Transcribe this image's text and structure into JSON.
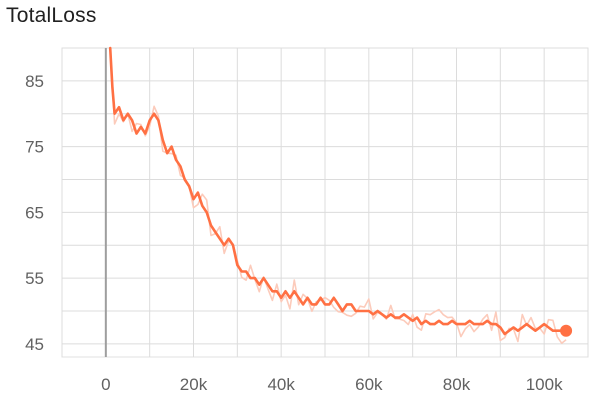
{
  "chart_data": {
    "type": "line",
    "title": "TotalLoss",
    "xlabel": "",
    "ylabel": "",
    "xlim": [
      -10000,
      110000
    ],
    "ylim": [
      43,
      90
    ],
    "x_ticks": [
      0,
      20000,
      40000,
      60000,
      80000,
      100000
    ],
    "x_tick_labels": [
      "0",
      "20k",
      "40k",
      "60k",
      "80k",
      "100k"
    ],
    "y_ticks": [
      45,
      55,
      65,
      75,
      85
    ],
    "y_tick_labels": [
      "45",
      "55",
      "65",
      "75",
      "85"
    ],
    "grid": true,
    "series": [
      {
        "name": "",
        "color": "#ff7043",
        "raw_color": "#fccbbb",
        "smoothed": [
          [
            1000,
            90
          ],
          [
            1500,
            84
          ],
          [
            2000,
            80
          ],
          [
            3000,
            81
          ],
          [
            4000,
            79
          ],
          [
            5000,
            80
          ],
          [
            6000,
            79
          ],
          [
            7000,
            77
          ],
          [
            8000,
            78
          ],
          [
            9000,
            77
          ],
          [
            10000,
            79
          ],
          [
            11000,
            80
          ],
          [
            12000,
            79
          ],
          [
            13000,
            76
          ],
          [
            14000,
            74
          ],
          [
            15000,
            75
          ],
          [
            16000,
            73
          ],
          [
            17000,
            72
          ],
          [
            18000,
            70
          ],
          [
            19000,
            69
          ],
          [
            20000,
            67
          ],
          [
            21000,
            68
          ],
          [
            22000,
            66
          ],
          [
            23000,
            65
          ],
          [
            24000,
            63
          ],
          [
            25000,
            62
          ],
          [
            26000,
            61
          ],
          [
            27000,
            60
          ],
          [
            28000,
            61
          ],
          [
            29000,
            60
          ],
          [
            30000,
            57
          ],
          [
            31000,
            56
          ],
          [
            32000,
            56
          ],
          [
            33000,
            55
          ],
          [
            34000,
            55
          ],
          [
            35000,
            54
          ],
          [
            36000,
            55
          ],
          [
            37000,
            54
          ],
          [
            38000,
            53
          ],
          [
            39000,
            53
          ],
          [
            40000,
            52
          ],
          [
            41000,
            53
          ],
          [
            42000,
            52
          ],
          [
            43000,
            53
          ],
          [
            44000,
            52
          ],
          [
            45000,
            51
          ],
          [
            46000,
            52
          ],
          [
            47000,
            51
          ],
          [
            48000,
            51
          ],
          [
            49000,
            52
          ],
          [
            50000,
            51
          ],
          [
            51000,
            51
          ],
          [
            52000,
            52
          ],
          [
            53000,
            51
          ],
          [
            54000,
            50
          ],
          [
            55000,
            51
          ],
          [
            56000,
            51
          ],
          [
            57000,
            50
          ],
          [
            58000,
            50
          ],
          [
            59000,
            50
          ],
          [
            60000,
            50
          ],
          [
            61000,
            49.5
          ],
          [
            62000,
            50
          ],
          [
            63000,
            49.5
          ],
          [
            64000,
            49
          ],
          [
            65000,
            49.5
          ],
          [
            66000,
            49
          ],
          [
            67000,
            49
          ],
          [
            68000,
            49.5
          ],
          [
            69000,
            49
          ],
          [
            70000,
            48.5
          ],
          [
            71000,
            49
          ],
          [
            72000,
            48
          ],
          [
            73000,
            48.5
          ],
          [
            74000,
            48
          ],
          [
            75000,
            48
          ],
          [
            76000,
            48.5
          ],
          [
            77000,
            48
          ],
          [
            78000,
            48
          ],
          [
            79000,
            48.5
          ],
          [
            80000,
            48
          ],
          [
            81000,
            48
          ],
          [
            82000,
            48
          ],
          [
            83000,
            48.5
          ],
          [
            84000,
            48
          ],
          [
            85000,
            48
          ],
          [
            86000,
            48
          ],
          [
            87000,
            48.5
          ],
          [
            88000,
            48
          ],
          [
            89000,
            48
          ],
          [
            90000,
            47.5
          ],
          [
            91000,
            46.5
          ],
          [
            92000,
            47
          ],
          [
            93000,
            47.5
          ],
          [
            94000,
            47
          ],
          [
            95000,
            47.5
          ],
          [
            96000,
            48
          ],
          [
            97000,
            47.5
          ],
          [
            98000,
            47
          ],
          [
            99000,
            47.5
          ],
          [
            100000,
            48
          ],
          [
            101000,
            47.5
          ],
          [
            102000,
            47
          ],
          [
            103000,
            47
          ],
          [
            104000,
            47
          ],
          [
            105000,
            47
          ]
        ],
        "last_point": [
          105000,
          47
        ]
      }
    ]
  }
}
